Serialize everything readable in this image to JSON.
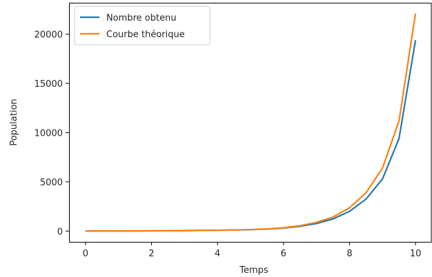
{
  "chart_data": {
    "type": "line",
    "xlabel": "Temps",
    "ylabel": "Population",
    "xlim": [
      -0.5,
      10.5
    ],
    "ylim": [
      -1100,
      23200
    ],
    "xticks": [
      0,
      2,
      4,
      6,
      8,
      10
    ],
    "yticks": [
      0,
      5000,
      10000,
      15000,
      20000
    ],
    "grid": false,
    "legend_position": "top-left",
    "x": [
      0,
      0.5,
      1,
      1.5,
      2,
      2.5,
      3,
      3.5,
      4,
      4.5,
      5,
      5.5,
      6,
      6.5,
      7,
      7.5,
      8,
      8.5,
      9,
      9.5,
      10
    ],
    "series": [
      {
        "name": "Nombre obtenu",
        "color": "#1f77b4",
        "values": [
          1,
          3,
          7,
          12,
          20,
          30,
          45,
          60,
          80,
          105,
          140,
          200,
          300,
          480,
          760,
          1230,
          2000,
          3250,
          5300,
          9400,
          19400
        ]
      },
      {
        "name": "Courbe théorique",
        "color": "#ff7f0e",
        "values": [
          1,
          3,
          7,
          12,
          20,
          30,
          45,
          60,
          80,
          110,
          148,
          215,
          330,
          540,
          880,
          1420,
          2350,
          3900,
          6400,
          11200,
          22100
        ]
      }
    ]
  }
}
